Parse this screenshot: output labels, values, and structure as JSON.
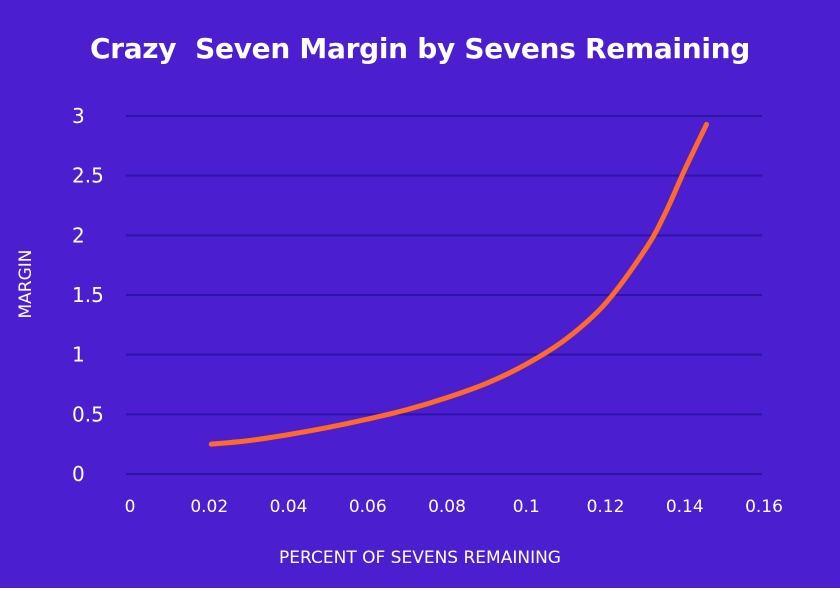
{
  "chart_data": {
    "type": "line",
    "title": "Crazy  Seven Margin by Sevens Remaining",
    "xlabel": "PERCENT OF SEVENS REMAINING",
    "ylabel": "MARGIN",
    "xlim": [
      0,
      0.16
    ],
    "ylim": [
      0,
      3
    ],
    "xticks": [
      "0",
      "0.02",
      "0.04",
      "0.06",
      "0.08",
      "0.1",
      "0.12",
      "0.14",
      "0.16"
    ],
    "yticks": [
      "0",
      "0.5",
      "1",
      "1.5",
      "2",
      "2.5",
      "3"
    ],
    "grid": true,
    "series": [
      {
        "color": "#ff6a2b",
        "x": [
          0.0205,
          0.03,
          0.04,
          0.05,
          0.06,
          0.07,
          0.08,
          0.09,
          0.1,
          0.11,
          0.12,
          0.13,
          0.135,
          0.14,
          0.1455
        ],
        "y": [
          0.25,
          0.28,
          0.33,
          0.39,
          0.46,
          0.54,
          0.64,
          0.76,
          0.92,
          1.13,
          1.43,
          1.88,
          2.18,
          2.55,
          2.93
        ]
      }
    ]
  },
  "colors": {
    "background": "#4b1fcf",
    "gridline": "#2e14a6",
    "text": "#ffffff",
    "line": "#ff6a2b"
  }
}
